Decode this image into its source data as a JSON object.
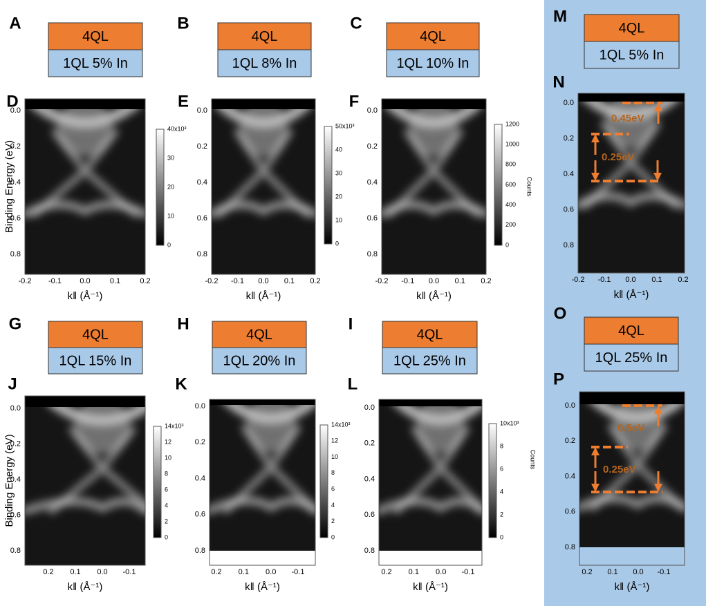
{
  "stacks": [
    {
      "letter": "A",
      "top": "4QL",
      "bottom": "1QL 5% In"
    },
    {
      "letter": "B",
      "top": "4QL",
      "bottom": "1QL 8% In"
    },
    {
      "letter": "C",
      "top": "4QL",
      "bottom": "1QL 10% In"
    },
    {
      "letter": "G",
      "top": "4QL",
      "bottom": "1QL 15% In"
    },
    {
      "letter": "H",
      "top": "4QL",
      "bottom": "1QL 20% In"
    },
    {
      "letter": "I",
      "top": "4QL",
      "bottom": "1QL 25% In"
    },
    {
      "letter": "M",
      "top": "4QL",
      "bottom": "1QL 5% In"
    },
    {
      "letter": "O",
      "top": "4QL",
      "bottom": "1QL 25% In"
    }
  ],
  "plots": [
    {
      "letter": "D",
      "ylabel": "Binding Energy (eV)",
      "yticks": [
        "0.0",
        "0.2",
        "0.4",
        "0.6",
        "0.8"
      ],
      "xticks": [
        "-0.2",
        "-0.1",
        "0.0",
        "0.1",
        "0.2"
      ],
      "xlabel": "k‖ (Å⁻¹)",
      "colorbar": [
        "0",
        "10",
        "20",
        "30",
        "40x10³"
      ]
    },
    {
      "letter": "E",
      "yticks": [
        "0.0",
        "0.2",
        "0.4",
        "0.6",
        "0.8"
      ],
      "xticks": [
        "-0.2",
        "-0.1",
        "0.0",
        "0.1",
        "0.2"
      ],
      "xlabel": "k‖ (Å⁻¹)",
      "colorbar": [
        "0",
        "10",
        "20",
        "30",
        "40",
        "50x10³"
      ]
    },
    {
      "letter": "F",
      "yticks": [
        "0.0",
        "0.2",
        "0.4",
        "0.6",
        "0.8"
      ],
      "xticks": [
        "-0.2",
        "-0.1",
        "0.0",
        "0.1",
        "0.2"
      ],
      "xlabel": "k‖ (Å⁻¹)",
      "colorbar": [
        "0",
        "200",
        "400",
        "600",
        "800",
        "1000",
        "1200"
      ],
      "colorbar_label": "Counts"
    },
    {
      "letter": "N",
      "yticks": [
        "0.0",
        "0.2",
        "0.4",
        "0.6",
        "0.8"
      ],
      "xticks": [
        "-0.2",
        "-0.1",
        "0.0",
        "0.1",
        "0.2"
      ],
      "xlabel": "k‖ (Å⁻¹)",
      "annotations": [
        "0.45eV",
        "0.25eV"
      ]
    },
    {
      "letter": "J",
      "ylabel": "Binding Energy (eV)",
      "yticks": [
        "0.0",
        "0.2",
        "0.4",
        "0.6",
        "0.8"
      ],
      "xticks": [
        "0.2",
        "0.1",
        "0.0",
        "-0.1"
      ],
      "xlabel": "k‖ (Å⁻¹)",
      "colorbar": [
        "0",
        "2",
        "4",
        "6",
        "8",
        "10",
        "12",
        "14x10³"
      ]
    },
    {
      "letter": "K",
      "yticks": [
        "0.0",
        "0.2",
        "0.4",
        "0.6",
        "0.8"
      ],
      "xticks": [
        "0.2",
        "0.1",
        "0.0",
        "-0.1"
      ],
      "xlabel": "k‖ (Å⁻¹)",
      "colorbar": [
        "0",
        "2",
        "4",
        "6",
        "8",
        "10",
        "12",
        "14x10³"
      ]
    },
    {
      "letter": "L",
      "yticks": [
        "0.0",
        "0.2",
        "0.4",
        "0.6",
        "0.8"
      ],
      "xticks": [
        "0.2",
        "0.1",
        "0.0",
        "-0.1"
      ],
      "xlabel": "k‖ (Å⁻¹)",
      "colorbar": [
        "0",
        "2",
        "4",
        "6",
        "8",
        "10x10³"
      ],
      "colorbar_label": "Counts"
    },
    {
      "letter": "P",
      "yticks": [
        "0.0",
        "0.2",
        "0.4",
        "0.6",
        "0.8"
      ],
      "xticks": [
        "0.2",
        "0.1",
        "0.0",
        "-0.1"
      ],
      "xlabel": "k‖ (Å⁻¹)",
      "annotations": [
        "0.5eV",
        "0.25eV"
      ]
    }
  ]
}
